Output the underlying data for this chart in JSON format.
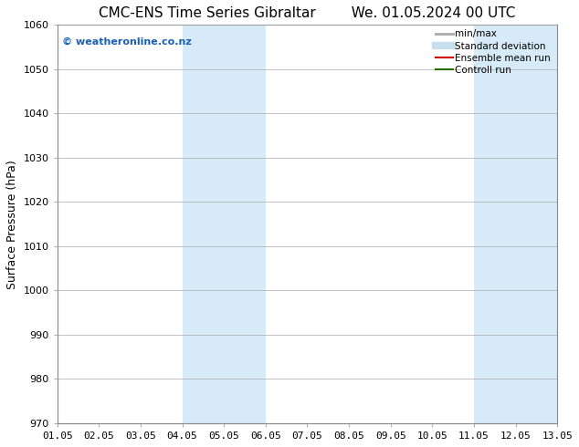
{
  "title_left": "CMC-ENS Time Series Gibraltar",
  "title_right": "We. 01.05.2024 00 UTC",
  "ylabel": "Surface Pressure (hPa)",
  "ylim": [
    970,
    1060
  ],
  "yticks": [
    970,
    980,
    990,
    1000,
    1010,
    1020,
    1030,
    1040,
    1050,
    1060
  ],
  "xlim_start": 0,
  "xlim_end": 12,
  "xtick_labels": [
    "01.05",
    "02.05",
    "03.05",
    "04.05",
    "05.05",
    "06.05",
    "07.05",
    "08.05",
    "09.05",
    "10.05",
    "11.05",
    "12.05",
    "13.05"
  ],
  "shaded_bands": [
    {
      "x_start": 3,
      "x_end": 5,
      "color": "#d6eaf8"
    },
    {
      "x_start": 10,
      "x_end": 12,
      "color": "#d6eaf8"
    }
  ],
  "watermark_text": "© weatheronline.co.nz",
  "watermark_color": "#1a5fb4",
  "legend_items": [
    {
      "label": "min/max",
      "color": "#aaaaaa",
      "lw": 2,
      "type": "line"
    },
    {
      "label": "Standard deviation",
      "color": "#c8dff0",
      "lw": 6,
      "type": "line"
    },
    {
      "label": "Ensemble mean run",
      "color": "#cc0000",
      "lw": 1.5,
      "type": "line"
    },
    {
      "label": "Controll run",
      "color": "#2a6e00",
      "lw": 1.5,
      "type": "line"
    }
  ],
  "bg_color": "#ffffff",
  "grid_color": "#aaaaaa",
  "title_fontsize": 11,
  "axis_label_fontsize": 9,
  "tick_fontsize": 8,
  "legend_fontsize": 7.5
}
